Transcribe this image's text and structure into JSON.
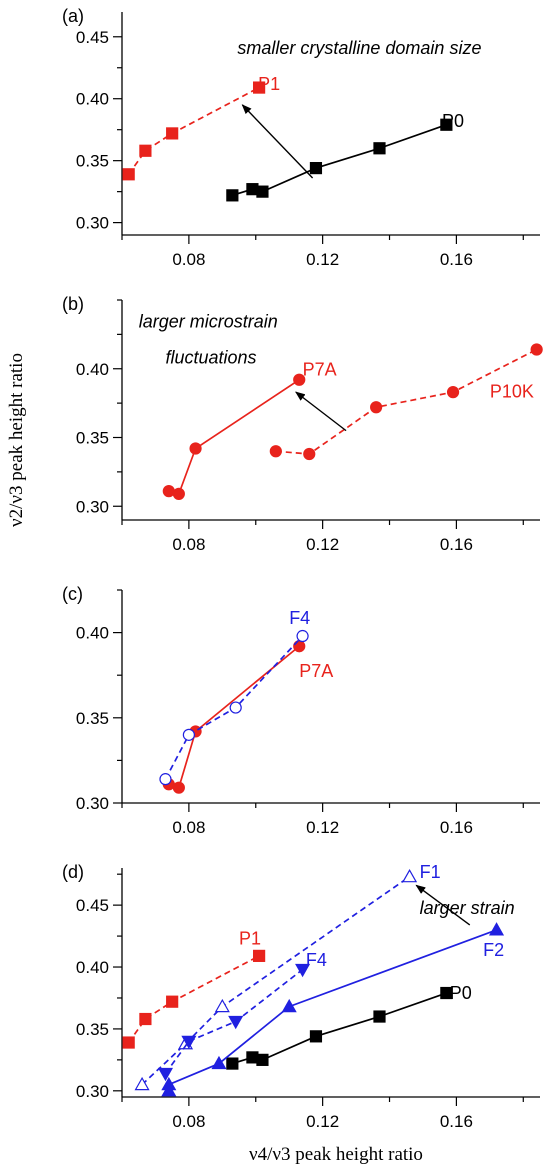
{
  "figure": {
    "ylabel": "ν2/ν3 peak height ratio",
    "xlabel": "ν4/ν3 peak height ratio"
  },
  "chart_data": [
    {
      "type": "line",
      "panel_label": "(a)",
      "xlim": [
        0.06,
        0.185
      ],
      "ylim": [
        0.29,
        0.47
      ],
      "xticks": [
        0.08,
        0.12,
        0.16
      ],
      "yticks": [
        0.3,
        0.35,
        0.4,
        0.45
      ],
      "xtick_labels": [
        "0.08",
        "0.12",
        "0.16"
      ],
      "ytick_labels": [
        "0.30",
        "0.35",
        "0.40",
        "0.45"
      ],
      "series": [
        {
          "name": "P1",
          "color": "#e8231c",
          "marker": "square",
          "filled": true,
          "dash": true,
          "x": [
            0.062,
            0.067,
            0.075,
            0.101
          ],
          "y": [
            0.339,
            0.358,
            0.372,
            0.409
          ]
        },
        {
          "name": "P0",
          "color": "#000000",
          "marker": "square",
          "filled": true,
          "dash": false,
          "x": [
            0.093,
            0.099,
            0.102,
            0.118,
            0.137,
            0.157
          ],
          "y": [
            0.322,
            0.327,
            0.325,
            0.344,
            0.36,
            0.379
          ]
        }
      ],
      "annotations": [
        {
          "text": "smaller crystalline domain size",
          "x": 0.131,
          "y": 0.436,
          "italic": true,
          "color": "#000000"
        },
        {
          "text": "P1",
          "x": 0.104,
          "y": 0.407,
          "italic": false,
          "color": "#e8231c"
        },
        {
          "text": "P0",
          "x": 0.159,
          "y": 0.377,
          "italic": false,
          "color": "#000000"
        }
      ],
      "arrows": [
        {
          "from": [
            0.117,
            0.336
          ],
          "to": [
            0.096,
            0.395
          ]
        }
      ]
    },
    {
      "type": "line",
      "panel_label": "(b)",
      "xlim": [
        0.06,
        0.185
      ],
      "ylim": [
        0.29,
        0.45
      ],
      "xticks": [
        0.08,
        0.12,
        0.16
      ],
      "yticks": [
        0.3,
        0.35,
        0.4
      ],
      "xtick_labels": [
        "0.08",
        "0.12",
        "0.16"
      ],
      "ytick_labels": [
        "0.30",
        "0.35",
        "0.40"
      ],
      "series": [
        {
          "name": "P7A",
          "color": "#e8231c",
          "marker": "circle",
          "filled": true,
          "dash": false,
          "x": [
            0.074,
            0.077,
            0.082,
            0.113
          ],
          "y": [
            0.311,
            0.309,
            0.342,
            0.392
          ]
        },
        {
          "name": "P10K",
          "color": "#e8231c",
          "marker": "circle",
          "filled": true,
          "dash": true,
          "x": [
            0.106,
            0.116,
            0.136,
            0.159,
            0.184
          ],
          "y": [
            0.34,
            0.338,
            0.372,
            0.383,
            0.414
          ]
        }
      ],
      "annotations": [
        {
          "text": "larger microstrain",
          "x": 0.065,
          "y": 0.43,
          "italic": true,
          "color": "#000000",
          "anchor": "start"
        },
        {
          "text": "fluctuations",
          "x": 0.073,
          "y": 0.404,
          "italic": true,
          "color": "#000000",
          "anchor": "start"
        },
        {
          "text": "P7A",
          "x": 0.114,
          "y": 0.395,
          "italic": false,
          "color": "#e8231c",
          "anchor": "start"
        },
        {
          "text": "P10K",
          "x": 0.17,
          "y": 0.379,
          "italic": false,
          "color": "#e8231c",
          "anchor": "start"
        }
      ],
      "arrows": [
        {
          "from": [
            0.127,
            0.355
          ],
          "to": [
            0.112,
            0.383
          ]
        }
      ]
    },
    {
      "type": "line",
      "panel_label": "(c)",
      "xlim": [
        0.06,
        0.185
      ],
      "ylim": [
        0.3,
        0.425
      ],
      "xticks": [
        0.08,
        0.12,
        0.16
      ],
      "yticks": [
        0.3,
        0.35,
        0.4
      ],
      "xtick_labels": [
        "0.08",
        "0.12",
        "0.16"
      ],
      "ytick_labels": [
        "0.30",
        "0.35",
        "0.40"
      ],
      "series": [
        {
          "name": "P7A",
          "color": "#e8231c",
          "marker": "circle",
          "filled": true,
          "dash": false,
          "x": [
            0.074,
            0.077,
            0.082,
            0.113
          ],
          "y": [
            0.311,
            0.309,
            0.342,
            0.392
          ]
        },
        {
          "name": "F4",
          "color": "#2020e0",
          "marker": "circle",
          "filled": false,
          "dash": true,
          "x": [
            0.073,
            0.08,
            0.094,
            0.114
          ],
          "y": [
            0.314,
            0.34,
            0.356,
            0.398
          ]
        }
      ],
      "annotations": [
        {
          "text": "F4",
          "x": 0.11,
          "y": 0.405,
          "italic": false,
          "color": "#2020e0",
          "anchor": "start"
        },
        {
          "text": "P7A",
          "x": 0.113,
          "y": 0.374,
          "italic": false,
          "color": "#e8231c",
          "anchor": "start"
        }
      ],
      "arrows": []
    },
    {
      "type": "line",
      "panel_label": "(d)",
      "xlim": [
        0.06,
        0.185
      ],
      "ylim": [
        0.295,
        0.48
      ],
      "xticks": [
        0.08,
        0.12,
        0.16
      ],
      "yticks": [
        0.3,
        0.35,
        0.4,
        0.45
      ],
      "xtick_labels": [
        "0.08",
        "0.12",
        "0.16"
      ],
      "ytick_labels": [
        "0.30",
        "0.35",
        "0.40",
        "0.45"
      ],
      "series": [
        {
          "name": "P1",
          "color": "#e8231c",
          "marker": "square",
          "filled": true,
          "dash": true,
          "x": [
            0.062,
            0.067,
            0.075,
            0.101
          ],
          "y": [
            0.339,
            0.358,
            0.372,
            0.409
          ]
        },
        {
          "name": "P0",
          "color": "#000000",
          "marker": "square",
          "filled": true,
          "dash": false,
          "x": [
            0.093,
            0.099,
            0.102,
            0.118,
            0.137,
            0.157
          ],
          "y": [
            0.322,
            0.327,
            0.325,
            0.344,
            0.36,
            0.379
          ]
        },
        {
          "name": "F1",
          "color": "#2020e0",
          "marker": "triangle-up",
          "filled": false,
          "dash": true,
          "x": [
            0.066,
            0.079,
            0.09,
            0.146
          ],
          "y": [
            0.305,
            0.338,
            0.368,
            0.473
          ]
        },
        {
          "name": "F4",
          "color": "#2020e0",
          "marker": "triangle-down",
          "filled": true,
          "dash": true,
          "x": [
            0.073,
            0.08,
            0.094,
            0.114
          ],
          "y": [
            0.314,
            0.34,
            0.356,
            0.398
          ]
        },
        {
          "name": "F2",
          "color": "#2020e0",
          "marker": "triangle-up",
          "filled": true,
          "dash": false,
          "x": [
            0.074,
            0.074,
            0.089,
            0.11,
            0.172
          ],
          "y": [
            0.3,
            0.305,
            0.322,
            0.368,
            0.43
          ]
        }
      ],
      "annotations": [
        {
          "text": "F1",
          "x": 0.149,
          "y": 0.472,
          "italic": false,
          "color": "#2020e0",
          "anchor": "start"
        },
        {
          "text": "larger strain",
          "x": 0.149,
          "y": 0.443,
          "italic": true,
          "color": "#000000",
          "anchor": "start"
        },
        {
          "text": "P1",
          "x": 0.095,
          "y": 0.418,
          "italic": false,
          "color": "#e8231c",
          "anchor": "start"
        },
        {
          "text": "F4",
          "x": 0.115,
          "y": 0.401,
          "italic": false,
          "color": "#2020e0",
          "anchor": "start"
        },
        {
          "text": "F2",
          "x": 0.168,
          "y": 0.409,
          "italic": false,
          "color": "#2020e0",
          "anchor": "start"
        },
        {
          "text": "P0",
          "x": 0.158,
          "y": 0.374,
          "italic": false,
          "color": "#000000",
          "anchor": "start"
        }
      ],
      "arrows": [
        {
          "from": [
            0.164,
            0.434
          ],
          "to": [
            0.148,
            0.466
          ]
        }
      ]
    }
  ]
}
